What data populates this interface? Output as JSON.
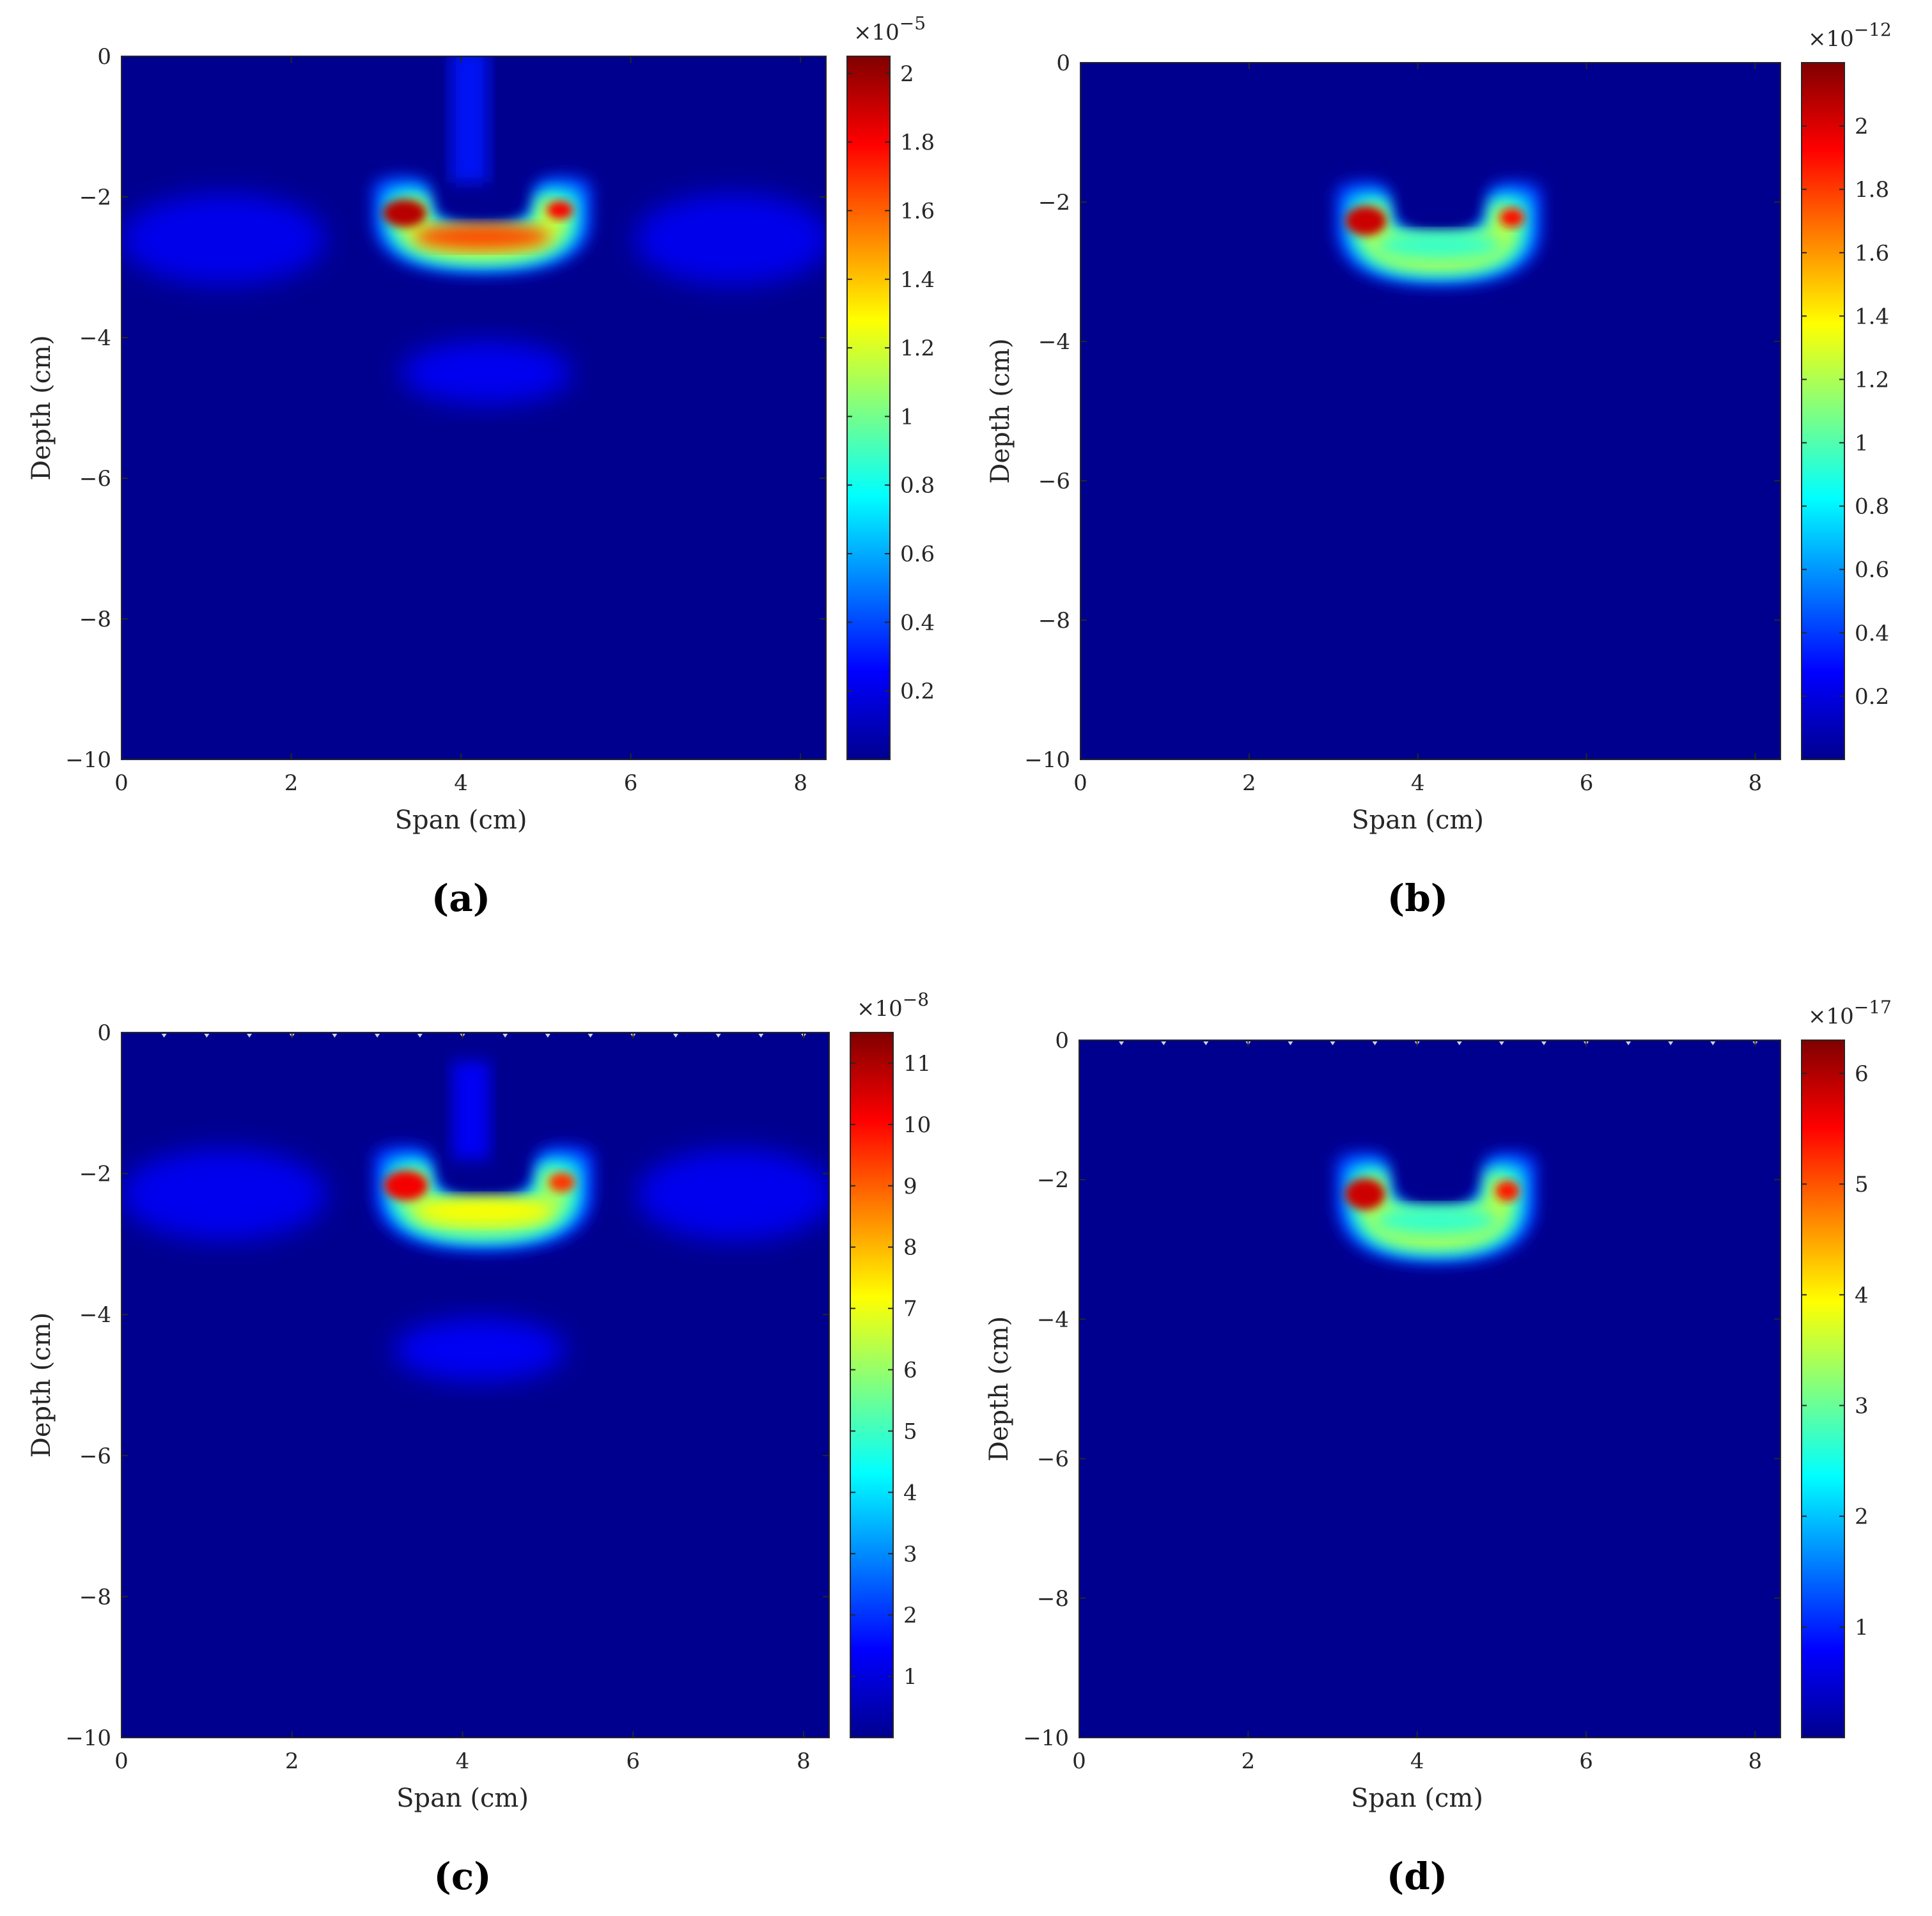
{
  "chart_data": [
    {
      "type": "heatmap",
      "panel_label": "(a)",
      "xlabel": "Span (cm)",
      "ylabel": "Depth (cm)",
      "xlim": [
        0,
        8.3
      ],
      "ylim": [
        -10,
        0
      ],
      "xticks": [
        "0",
        "2",
        "4",
        "6",
        "8"
      ],
      "yticks": [
        "0",
        "−2",
        "−4",
        "−6",
        "−8",
        "−10"
      ],
      "colormap": "jet",
      "colorbar": {
        "min": 0,
        "max": 2.05,
        "multiplier_base": "×10",
        "multiplier_exp": "−5",
        "ticks": [
          "0.2",
          "0.4",
          "0.6",
          "0.8",
          "1",
          "1.2",
          "1.4",
          "1.6",
          "1.8",
          "2"
        ],
        "tick_values": [
          0.2,
          0.4,
          0.6,
          0.8,
          1,
          1.2,
          1.4,
          1.6,
          1.8,
          2
        ]
      },
      "features": {
        "u_shape": {
          "x_left": 3.3,
          "x_right": 5.2,
          "top": -1.7,
          "bottom": -3.1,
          "peak": 2.0
        },
        "top_column": {
          "x": 4.1,
          "top": 0,
          "bottom": -1.8,
          "level": 0.3
        },
        "side_lobes": {
          "y": -2.6,
          "level": 0.25
        },
        "lower_blob": {
          "x": 4.3,
          "y": -4.5,
          "level": 0.25
        }
      },
      "surface_markers": false
    },
    {
      "type": "heatmap",
      "panel_label": "(b)",
      "xlabel": "Span (cm)",
      "ylabel": "Depth (cm)",
      "xlim": [
        0,
        8.3
      ],
      "ylim": [
        -10,
        0
      ],
      "xticks": [
        "0",
        "2",
        "4",
        "6",
        "8"
      ],
      "yticks": [
        "0",
        "−2",
        "−4",
        "−6",
        "−8",
        "−10"
      ],
      "colormap": "jet",
      "colorbar": {
        "min": 0,
        "max": 2.2,
        "multiplier_base": "×10",
        "multiplier_exp": "−12",
        "ticks": [
          "0.2",
          "0.4",
          "0.6",
          "0.8",
          "1",
          "1.2",
          "1.4",
          "1.6",
          "1.8",
          "2"
        ],
        "tick_values": [
          0.2,
          0.4,
          0.6,
          0.8,
          1,
          1.2,
          1.4,
          1.6,
          1.8,
          2
        ]
      },
      "features": {
        "u_shape": {
          "x_left": 3.35,
          "x_right": 5.15,
          "top": -1.7,
          "bottom": -3.2,
          "peak": 2.1
        },
        "top_column": null,
        "side_lobes": null,
        "lower_blob": null
      },
      "surface_markers": false
    },
    {
      "type": "heatmap",
      "panel_label": "(c)",
      "xlabel": "Span (cm)",
      "ylabel": "Depth (cm)",
      "xlim": [
        0,
        8.3
      ],
      "ylim": [
        -10,
        0
      ],
      "xticks": [
        "0",
        "2",
        "4",
        "6",
        "8"
      ],
      "yticks": [
        "0",
        "−2",
        "−4",
        "−6",
        "−8",
        "−10"
      ],
      "colormap": "jet",
      "colorbar": {
        "min": 0,
        "max": 11.5,
        "multiplier_base": "×10",
        "multiplier_exp": "−8",
        "ticks": [
          "1",
          "2",
          "3",
          "4",
          "5",
          "6",
          "7",
          "8",
          "9",
          "10",
          "11"
        ],
        "tick_values": [
          1,
          2,
          3,
          4,
          5,
          6,
          7,
          8,
          9,
          10,
          11
        ]
      },
      "features": {
        "u_shape": {
          "x_left": 3.3,
          "x_right": 5.2,
          "top": -1.6,
          "bottom": -3.1,
          "peak": 10.5
        },
        "top_column": {
          "x": 4.1,
          "top": -0.5,
          "bottom": -1.8,
          "level": 1.5
        },
        "side_lobes": {
          "y": -2.3,
          "level": 1.5
        },
        "lower_blob": {
          "x": 4.2,
          "y": -4.5,
          "level": 1.5
        }
      },
      "surface_markers": true
    },
    {
      "type": "heatmap",
      "panel_label": "(d)",
      "xlabel": "Span (cm)",
      "ylabel": "Depth (cm)",
      "xlim": [
        0,
        8.3
      ],
      "ylim": [
        -10,
        0
      ],
      "xticks": [
        "0",
        "2",
        "4",
        "6",
        "8"
      ],
      "yticks": [
        "0",
        "−2",
        "−4",
        "−6",
        "−8",
        "−10"
      ],
      "colormap": "jet",
      "colorbar": {
        "min": 0,
        "max": 6.3,
        "multiplier_base": "×10",
        "multiplier_exp": "−17",
        "ticks": [
          "1",
          "2",
          "3",
          "4",
          "5",
          "6"
        ],
        "tick_values": [
          1,
          2,
          3,
          4,
          5,
          6
        ]
      },
      "features": {
        "u_shape": {
          "x_left": 3.35,
          "x_right": 5.1,
          "top": -1.6,
          "bottom": -3.2,
          "peak": 6.0
        },
        "top_column": null,
        "side_lobes": null,
        "lower_blob": null
      },
      "surface_markers": true
    }
  ]
}
